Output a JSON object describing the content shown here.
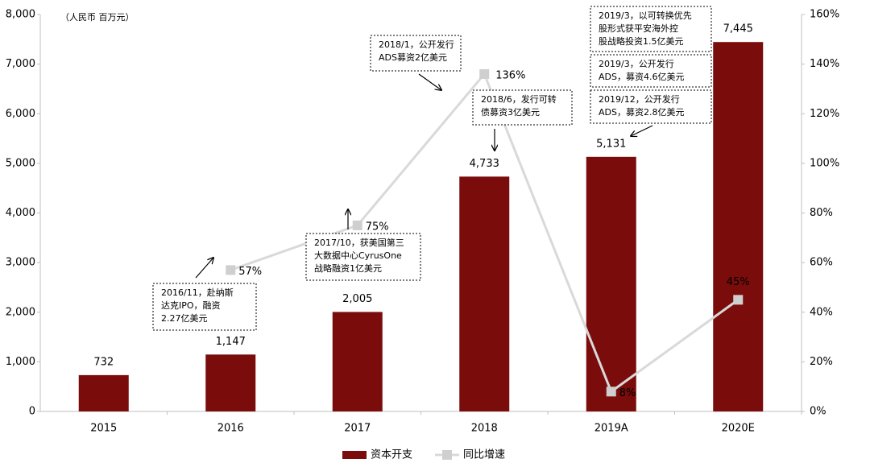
{
  "chart_data": {
    "type": "bar",
    "annotation_unit": "（人民币 百万元）",
    "categories": [
      "2015",
      "2016",
      "2017",
      "2018",
      "2019A",
      "2020E"
    ],
    "series": [
      {
        "name": "资本开支",
        "type": "bar",
        "color": "#7b0c0c",
        "values": [
          732,
          1147,
          2005,
          4733,
          5131,
          7445
        ],
        "value_labels": [
          "732",
          "1,147",
          "2,005",
          "4,733",
          "5,131",
          "7,445"
        ]
      },
      {
        "name": "同比增速",
        "type": "line",
        "axis": "y2",
        "color": "#d9d9d9",
        "marker_color": "#cfcfcf",
        "values": [
          null,
          57,
          75,
          136,
          8,
          45
        ],
        "value_labels": [
          null,
          "57%",
          "75%",
          "136%",
          "8%",
          "45%"
        ]
      }
    ],
    "ylim": [
      0,
      8000
    ],
    "yticks": [
      0,
      {
        "value": 1000,
        "label": "1,000"
      },
      {
        "value": 2000,
        "label": "2,000"
      },
      {
        "value": 3000,
        "label": "3,000"
      },
      {
        "value": 4000,
        "label": "4,000"
      },
      {
        "value": 5000,
        "label": "5,000"
      },
      {
        "value": 6000,
        "label": "6,000"
      },
      {
        "value": 7000,
        "label": "7,000"
      },
      {
        "value": 8000,
        "label": "8,000"
      }
    ],
    "y2lim": [
      0,
      160
    ],
    "y2ticks": [
      {
        "value": 0,
        "label": "0%"
      },
      {
        "value": 20,
        "label": "20%"
      },
      {
        "value": 40,
        "label": "40%"
      },
      {
        "value": 60,
        "label": "60%"
      },
      {
        "value": 80,
        "label": "80%"
      },
      {
        "value": 100,
        "label": "100%"
      },
      {
        "value": 120,
        "label": "120%"
      },
      {
        "value": 140,
        "label": "140%"
      },
      {
        "value": 160,
        "label": "160%"
      }
    ],
    "legend": "bottom",
    "annotations": [
      {
        "lines": [
          "2016/11，赴纳斯",
          "达克IPO，融资",
          "2.27亿美元"
        ]
      },
      {
        "lines": [
          "2017/10，获美国第三",
          "大数据中心CyrusOne",
          "战略融资1亿美元"
        ]
      },
      {
        "lines": [
          "2018/1，公开发行",
          "ADS募资2亿美元"
        ]
      },
      {
        "lines": [
          "2018/6，发行可转",
          "债募资3亿美元"
        ]
      },
      {
        "lines": [
          "2019/3，以可转换优先",
          "股形式获平安海外控",
          "股战略投资1.5亿美元"
        ]
      },
      {
        "lines": [
          "2019/3，公开发行",
          "ADS，募资4.6亿美元"
        ]
      },
      {
        "lines": [
          "2019/12，公开发行",
          "ADS，募资2.8亿美元"
        ]
      }
    ]
  }
}
